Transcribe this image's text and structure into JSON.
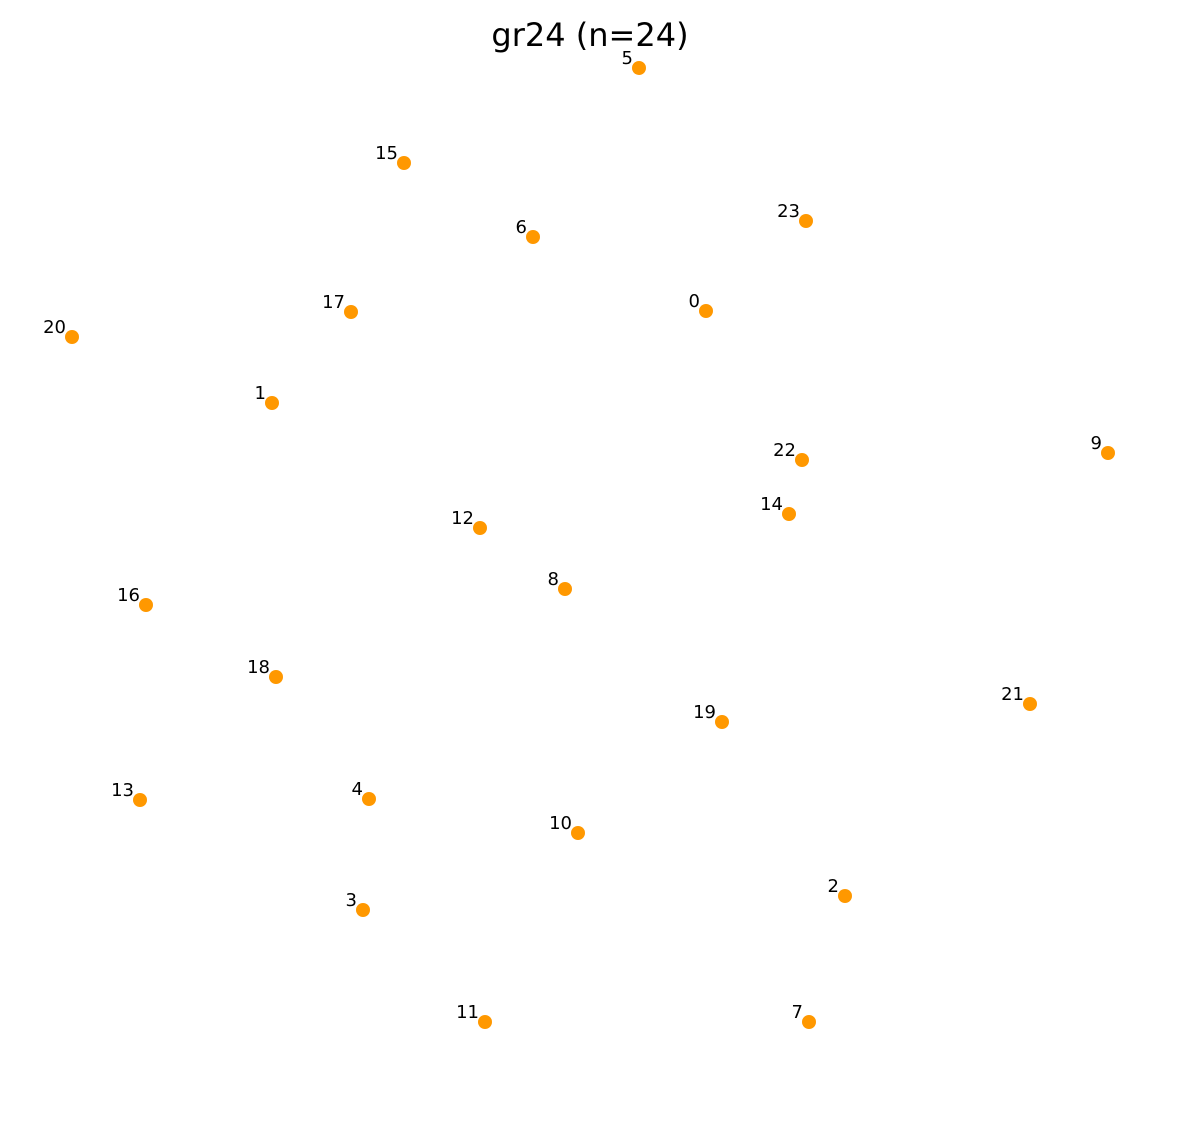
{
  "chart_data": {
    "type": "scatter",
    "title": "gr24  (n=24)",
    "marker_color": "#ff9800",
    "label_color": "#000000",
    "axes_visible": false,
    "grid": false,
    "xlim": [
      0,
      1180
    ],
    "ylim": [
      1132,
      0
    ],
    "points": [
      {
        "label": "0",
        "x": 706,
        "y": 821
      },
      {
        "label": "1",
        "x": 272,
        "y": 729
      },
      {
        "label": "2",
        "x": 845,
        "y": 236
      },
      {
        "label": "3",
        "x": 363,
        "y": 222
      },
      {
        "label": "4",
        "x": 369,
        "y": 333
      },
      {
        "label": "5",
        "x": 639,
        "y": 1064
      },
      {
        "label": "6",
        "x": 533,
        "y": 895
      },
      {
        "label": "7",
        "x": 809,
        "y": 110
      },
      {
        "label": "8",
        "x": 565,
        "y": 543
      },
      {
        "label": "9",
        "x": 1108,
        "y": 679
      },
      {
        "label": "10",
        "x": 578,
        "y": 299
      },
      {
        "label": "11",
        "x": 485,
        "y": 110
      },
      {
        "label": "12",
        "x": 480,
        "y": 604
      },
      {
        "label": "13",
        "x": 140,
        "y": 332
      },
      {
        "label": "14",
        "x": 789,
        "y": 618
      },
      {
        "label": "15",
        "x": 404,
        "y": 969
      },
      {
        "label": "16",
        "x": 146,
        "y": 527
      },
      {
        "label": "17",
        "x": 351,
        "y": 820
      },
      {
        "label": "18",
        "x": 276,
        "y": 455
      },
      {
        "label": "19",
        "x": 722,
        "y": 410
      },
      {
        "label": "20",
        "x": 72,
        "y": 795
      },
      {
        "label": "21",
        "x": 1030,
        "y": 428
      },
      {
        "label": "22",
        "x": 802,
        "y": 672
      },
      {
        "label": "23",
        "x": 806,
        "y": 911
      }
    ]
  }
}
